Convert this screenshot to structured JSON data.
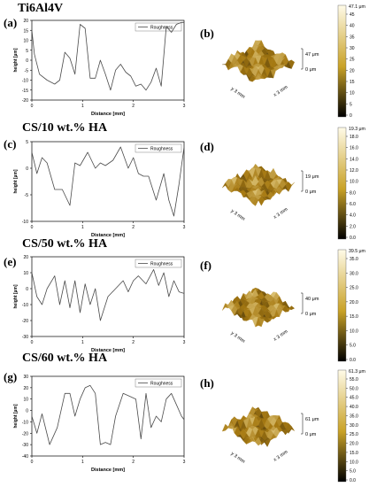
{
  "figure": {
    "colors": {
      "line": "#4a4a4a",
      "axis": "#000000",
      "surface_dark": "#3a2a06",
      "surface_mid": "#a77a12",
      "surface_light": "#f7e7a8",
      "colorbar_top": "#fffbe8",
      "colorbar_mid": "#c9a227",
      "colorbar_bottom": "#000000"
    },
    "colorbar_ticks_label": "labels on colorbars",
    "rows": [
      {
        "title": "Ti6Al4V",
        "profile_label": "(a)",
        "afm_label": "(b)",
        "afm": {
          "height_label": "47 μm",
          "zero_label": "0 μm",
          "axis_y": "y 3 mm",
          "axis_x": "x 3 mm",
          "colorbar_max": "47.1 μm",
          "colorbar_ticks": [
            "45",
            "40",
            "35",
            "30",
            "25",
            "20",
            "15",
            "10",
            "5",
            "0"
          ]
        }
      },
      {
        "title": "CS/10 wt.% HA",
        "profile_label": "(c)",
        "afm_label": "(d)",
        "afm": {
          "height_label": "19 μm",
          "zero_label": "0 μm",
          "axis_y": "y 3 mm",
          "axis_x": "x 3 mm",
          "colorbar_max": "19.3 μm",
          "colorbar_ticks": [
            "18.0",
            "16.0",
            "14.0",
            "12.0",
            "10.0",
            "8.0",
            "6.0",
            "4.0",
            "2.0",
            "0.0"
          ]
        }
      },
      {
        "title": "CS/50 wt.% HA",
        "profile_label": "(e)",
        "afm_label": "(f)",
        "afm": {
          "height_label": "40 μm",
          "zero_label": "0 μm",
          "axis_y": "y 3 mm",
          "axis_x": "x 3 mm",
          "colorbar_max": "39.5 μm",
          "colorbar_ticks": [
            "35.0",
            "30.0",
            "25.0",
            "20.0",
            "15.0",
            "10.0",
            "5.0",
            "0.0"
          ]
        }
      },
      {
        "title": "CS/60 wt.% HA",
        "profile_label": "(g)",
        "afm_label": "(h)",
        "afm": {
          "height_label": "61 μm",
          "zero_label": "0 μm",
          "axis_y": "y 3 mm",
          "axis_x": "x 3 mm",
          "colorbar_max": "61.3 μm",
          "colorbar_ticks": [
            "55.0",
            "50.0",
            "45.0",
            "40.0",
            "35.0",
            "30.0",
            "25.0",
            "20.0",
            "15.0",
            "10.0",
            "5.0",
            "0.0"
          ]
        }
      }
    ]
  },
  "chart_data": [
    {
      "type": "line",
      "panel": "(a)",
      "xlabel": "Distance [mm]",
      "ylabel": "height [µm]",
      "xlim": [
        0,
        3
      ],
      "ylim": [
        -20,
        20
      ],
      "xticks": [
        "0",
        "1",
        "2",
        "3"
      ],
      "yticks": [
        "-20",
        "-15",
        "-10",
        "-5",
        "0",
        "5",
        "10",
        "15",
        "20"
      ],
      "legend": "Roughness",
      "legend_position": "top-right",
      "series": [
        {
          "name": "Roughness",
          "x": [
            0,
            0.05,
            0.15,
            0.3,
            0.45,
            0.55,
            0.65,
            0.75,
            0.85,
            0.95,
            1.05,
            1.15,
            1.25,
            1.35,
            1.45,
            1.55,
            1.65,
            1.75,
            1.85,
            1.95,
            2.05,
            2.15,
            2.25,
            2.35,
            2.45,
            2.55,
            2.65,
            2.75,
            2.85,
            2.95,
            3.0
          ],
          "y": [
            15,
            3,
            -7,
            -10,
            -12,
            -10,
            4,
            1,
            -7,
            18,
            16,
            -9,
            -9,
            0,
            -7,
            -15,
            -5,
            -2,
            -6,
            -8,
            -13,
            -12,
            -15,
            -11,
            -4,
            -13,
            17,
            14,
            18,
            19,
            19
          ]
        }
      ]
    },
    {
      "type": "line",
      "panel": "(c)",
      "xlabel": "Distance [mm]",
      "ylabel": "height [µm]",
      "xlim": [
        0,
        3
      ],
      "ylim": [
        -10,
        5
      ],
      "xticks": [
        "0",
        "1",
        "2",
        "3"
      ],
      "yticks": [
        "-10",
        "-5",
        "0",
        "5"
      ],
      "legend": "Roughness",
      "legend_position": "top-right",
      "series": [
        {
          "name": "Roughness",
          "x": [
            0,
            0.1,
            0.2,
            0.3,
            0.45,
            0.6,
            0.75,
            0.85,
            0.95,
            1.1,
            1.25,
            1.35,
            1.45,
            1.6,
            1.75,
            1.9,
            2.0,
            2.1,
            2.2,
            2.3,
            2.45,
            2.6,
            2.7,
            2.8,
            2.9,
            3.0
          ],
          "y": [
            3,
            -1,
            2,
            1,
            -4,
            -4,
            -7,
            1,
            0.5,
            3,
            0,
            1,
            0.5,
            1.5,
            4,
            0,
            2,
            -1,
            -1.5,
            -1.5,
            -6,
            -1,
            -6,
            -9,
            -3,
            4
          ]
        }
      ]
    },
    {
      "type": "line",
      "panel": "(e)",
      "xlabel": "Distance [mm]",
      "ylabel": "height [µm]",
      "xlim": [
        0,
        3
      ],
      "ylim": [
        -30,
        20
      ],
      "xticks": [
        "0",
        "1",
        "2",
        "3"
      ],
      "yticks": [
        "-30",
        "-20",
        "-10",
        "0",
        "10",
        "20"
      ],
      "legend": "Roughness",
      "legend_position": "top-right",
      "series": [
        {
          "name": "Roughness",
          "x": [
            0,
            0.1,
            0.2,
            0.3,
            0.45,
            0.55,
            0.65,
            0.75,
            0.85,
            0.95,
            1.05,
            1.15,
            1.25,
            1.35,
            1.5,
            1.65,
            1.8,
            1.9,
            2.0,
            2.1,
            2.25,
            2.4,
            2.5,
            2.6,
            2.7,
            2.8,
            2.9,
            3.0
          ],
          "y": [
            10,
            -5,
            -10,
            0,
            8,
            -10,
            5,
            -12,
            5,
            -15,
            3,
            -10,
            0,
            -20,
            -5,
            0,
            5,
            -2,
            5,
            8,
            3,
            12,
            2,
            10,
            -5,
            5,
            -2,
            -3
          ]
        }
      ]
    },
    {
      "type": "line",
      "panel": "(g)",
      "xlabel": "Distance [mm]",
      "ylabel": "height [µm]",
      "xlim": [
        0,
        3
      ],
      "ylim": [
        -40,
        30
      ],
      "xticks": [
        "0",
        "1",
        "2",
        "3"
      ],
      "yticks": [
        "-40",
        "-30",
        "-20",
        "-10",
        "0",
        "10",
        "20",
        "30"
      ],
      "legend": "Roughness",
      "legend_position": "top-right",
      "series": [
        {
          "name": "Roughness",
          "x": [
            0,
            0.1,
            0.2,
            0.35,
            0.5,
            0.65,
            0.75,
            0.85,
            0.95,
            1.05,
            1.15,
            1.25,
            1.35,
            1.45,
            1.55,
            1.65,
            1.8,
            1.95,
            2.05,
            2.15,
            2.25,
            2.35,
            2.45,
            2.55,
            2.65,
            2.75,
            2.85,
            2.95,
            3.0
          ],
          "y": [
            -5,
            -20,
            -3,
            -30,
            -15,
            15,
            15,
            -5,
            10,
            20,
            22,
            15,
            -30,
            -28,
            -30,
            -5,
            15,
            12,
            10,
            -25,
            15,
            -15,
            -5,
            -10,
            10,
            15,
            5,
            -5,
            -8
          ]
        }
      ]
    }
  ]
}
